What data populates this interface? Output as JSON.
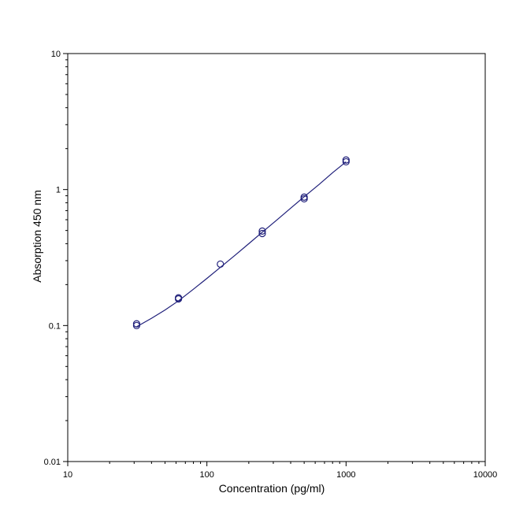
{
  "chart_data": {
    "type": "scatter",
    "title": "",
    "xlabel": "Concentration (pg/ml)",
    "ylabel": "Absorption 450 nm",
    "x_scale": "log",
    "y_scale": "log",
    "xlim": [
      10,
      10000
    ],
    "ylim": [
      0.01,
      10
    ],
    "x_ticks": [
      {
        "value": 10,
        "label": "10"
      },
      {
        "value": 100,
        "label": "100"
      },
      {
        "value": 1000,
        "label": "1000"
      },
      {
        "value": 10000,
        "label": "10000"
      }
    ],
    "y_ticks": [
      {
        "value": 0.01,
        "label": "0.01"
      },
      {
        "value": 0.1,
        "label": "0.1"
      },
      {
        "value": 1,
        "label": "1"
      },
      {
        "value": 10,
        "label": "10"
      }
    ],
    "grid": false,
    "legend": "none",
    "colors": {
      "points": "#1f1f7a",
      "curve": "#1f1f7a",
      "axes": "#000000"
    },
    "series": [
      {
        "marker": "open-circle",
        "points": [
          {
            "x": 31.25,
            "y": 0.1
          },
          {
            "x": 31.25,
            "y": 0.103
          },
          {
            "x": 62.5,
            "y": 0.157
          },
          {
            "x": 62.5,
            "y": 0.16
          },
          {
            "x": 125,
            "y": 0.283
          },
          {
            "x": 250,
            "y": 0.475
          },
          {
            "x": 250,
            "y": 0.495
          },
          {
            "x": 500,
            "y": 0.855
          },
          {
            "x": 500,
            "y": 0.88
          },
          {
            "x": 1000,
            "y": 1.6
          },
          {
            "x": 1000,
            "y": 1.65
          }
        ]
      }
    ],
    "fit_curve": {
      "points": [
        {
          "x": 31.25,
          "y": 0.098
        },
        {
          "x": 40,
          "y": 0.113
        },
        {
          "x": 50,
          "y": 0.13
        },
        {
          "x": 62.5,
          "y": 0.152
        },
        {
          "x": 80,
          "y": 0.185
        },
        {
          "x": 100,
          "y": 0.222
        },
        {
          "x": 125,
          "y": 0.268
        },
        {
          "x": 160,
          "y": 0.33
        },
        {
          "x": 200,
          "y": 0.4
        },
        {
          "x": 250,
          "y": 0.486
        },
        {
          "x": 320,
          "y": 0.6
        },
        {
          "x": 400,
          "y": 0.73
        },
        {
          "x": 500,
          "y": 0.885
        },
        {
          "x": 640,
          "y": 1.09
        },
        {
          "x": 800,
          "y": 1.33
        },
        {
          "x": 1000,
          "y": 1.6
        }
      ]
    }
  }
}
